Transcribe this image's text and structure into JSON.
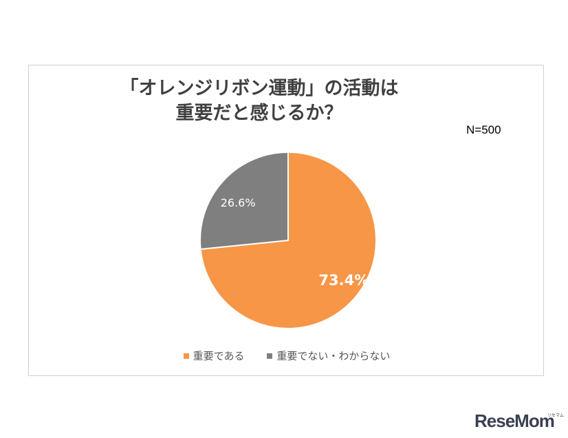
{
  "chart_data": {
    "type": "pie",
    "title_lines": [
      "「オレンジリボン運動」の活動は",
      "重要だと感じるか？"
    ],
    "annotation": "N=500",
    "slices": [
      {
        "name": "重要である",
        "value": 73.4,
        "label": "73.4%",
        "color": "#f79646"
      },
      {
        "name": "重要でない・わからない",
        "value": 26.6,
        "label": "26.6%",
        "color": "#7f7f7f"
      }
    ],
    "legend_position": "bottom"
  },
  "branding": {
    "logo": "ReseMom",
    "logo_sub": "リセマム"
  }
}
